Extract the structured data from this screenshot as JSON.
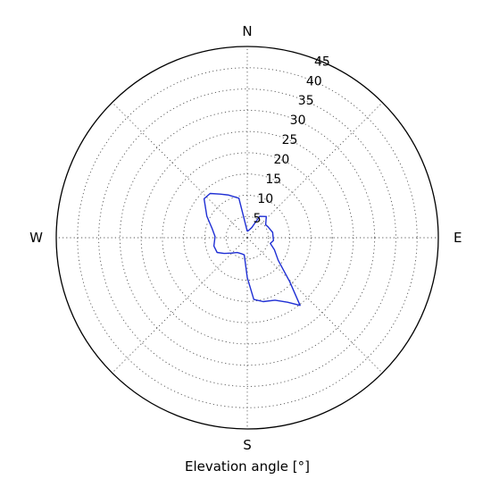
{
  "chart_data": {
    "type": "line",
    "projection": "polar",
    "xlabel": "Elevation angle [°]",
    "theta_direction": "clockwise",
    "theta_zero": "N",
    "compass_labels": [
      "N",
      "E",
      "S",
      "W"
    ],
    "radial_ticks": [
      5,
      10,
      15,
      20,
      25,
      30,
      35,
      40,
      45
    ],
    "rlim": [
      0,
      45
    ],
    "grid": true,
    "series_color": "#1f2fd4",
    "series": [
      {
        "azimuth_deg": [
          0,
          12,
          24,
          30,
          42,
          55,
          62,
          78,
          96,
          104,
          114,
          126,
          136,
          142,
          148,
          156,
          166,
          174,
          180,
          190,
          200,
          214,
          226,
          236,
          244,
          256,
          272,
          284,
          298,
          312,
          320,
          328,
          336,
          348,
          360
        ],
        "values": [
          1.5,
          1.8,
          2.6,
          5.8,
          6.7,
          5.3,
          5.5,
          6.1,
          6.2,
          5.6,
          7.0,
          9.0,
          14.4,
          20.2,
          17.9,
          16.1,
          15.5,
          14.6,
          9.4,
          4.1,
          4.0,
          4.2,
          5.2,
          6.6,
          7.9,
          8.1,
          7.6,
          8.5,
          10.8,
          13.7,
          13.6,
          12.1,
          11.0,
          9.5,
          1.5
        ]
      }
    ]
  }
}
